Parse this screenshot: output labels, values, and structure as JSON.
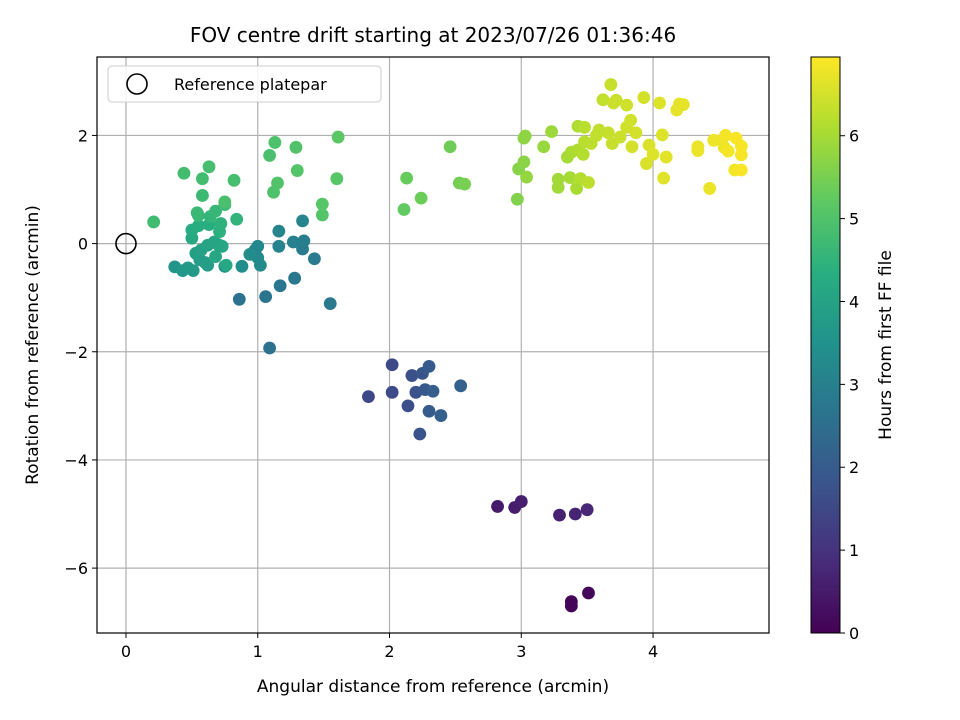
{
  "chart_data": {
    "type": "scatter",
    "title": "FOV centre drift starting at 2023/07/26 01:36:46",
    "xlabel": "Angular distance from reference (arcmin)",
    "ylabel": "Rotation from reference (arcmin)",
    "xlim": [
      -0.22,
      4.88
    ],
    "ylim": [
      -7.2,
      3.45
    ],
    "xticks": [
      0,
      1,
      2,
      3,
      4
    ],
    "yticks": [
      -6,
      -4,
      -2,
      0,
      2
    ],
    "xtick_labels": [
      "0",
      "1",
      "2",
      "3",
      "4"
    ],
    "ytick_labels": [
      "−6",
      "−4",
      "−2",
      "0",
      "2"
    ],
    "grid": true,
    "legend": {
      "placement": "top-left",
      "entries": [
        {
          "label": "Reference platepar",
          "marker": "open-circle",
          "x": 0,
          "y": 0
        }
      ]
    },
    "colorbar": {
      "label": "Hours from first FF file",
      "range": [
        0,
        6.95
      ],
      "ticks": [
        0,
        1,
        2,
        3,
        4,
        5,
        6
      ],
      "tick_labels": [
        "0",
        "1",
        "2",
        "3",
        "4",
        "5",
        "6"
      ],
      "colormap": "viridis"
    },
    "points": [
      [
        3.38,
        -6.62,
        0.05
      ],
      [
        3.38,
        -6.7,
        0.08
      ],
      [
        3.51,
        -6.46,
        0.12
      ],
      [
        2.82,
        -4.86,
        0.5
      ],
      [
        2.95,
        -4.88,
        0.55
      ],
      [
        3.0,
        -4.77,
        0.6
      ],
      [
        3.29,
        -5.02,
        0.65
      ],
      [
        3.41,
        -5.0,
        0.7
      ],
      [
        3.5,
        -4.92,
        0.75
      ],
      [
        1.84,
        -2.83,
        1.5
      ],
      [
        2.02,
        -2.24,
        1.55
      ],
      [
        2.02,
        -2.75,
        1.6
      ],
      [
        2.14,
        -3.0,
        1.65
      ],
      [
        2.17,
        -2.44,
        1.7
      ],
      [
        2.2,
        -2.75,
        1.75
      ],
      [
        2.23,
        -3.52,
        1.8
      ],
      [
        2.25,
        -2.4,
        1.85
      ],
      [
        2.27,
        -2.7,
        1.9
      ],
      [
        2.3,
        -2.27,
        1.95
      ],
      [
        2.3,
        -3.1,
        2.0
      ],
      [
        2.33,
        -2.73,
        2.05
      ],
      [
        2.39,
        -3.18,
        2.1
      ],
      [
        2.54,
        -2.63,
        2.15
      ],
      [
        0.86,
        -1.03,
        2.6
      ],
      [
        1.09,
        -1.93,
        2.6
      ],
      [
        1.06,
        -0.98,
        2.65
      ],
      [
        1.17,
        -0.78,
        2.7
      ],
      [
        1.28,
        -0.64,
        2.75
      ],
      [
        1.55,
        -1.11,
        2.8
      ],
      [
        1.43,
        -0.28,
        2.85
      ],
      [
        1.34,
        -0.1,
        2.9
      ],
      [
        1.35,
        0.05,
        2.95
      ],
      [
        1.27,
        0.03,
        3.0
      ],
      [
        1.16,
        -0.05,
        3.05
      ],
      [
        1.16,
        0.23,
        3.1
      ],
      [
        1.34,
        0.42,
        3.1
      ],
      [
        0.98,
        -0.12,
        3.15
      ],
      [
        1.0,
        -0.05,
        3.2
      ],
      [
        1.0,
        -0.26,
        3.25
      ],
      [
        1.02,
        -0.4,
        3.3
      ],
      [
        0.94,
        -0.2,
        3.35
      ],
      [
        0.88,
        -0.42,
        3.4
      ],
      [
        0.75,
        -0.42,
        3.45
      ],
      [
        0.37,
        -0.43,
        3.6
      ],
      [
        0.43,
        -0.5,
        3.65
      ],
      [
        0.47,
        -0.45,
        3.7
      ],
      [
        0.51,
        -0.5,
        3.75
      ],
      [
        0.56,
        -0.3,
        3.8
      ],
      [
        0.6,
        -0.35,
        3.85
      ],
      [
        0.62,
        -0.4,
        3.85
      ],
      [
        0.53,
        -0.18,
        3.9
      ],
      [
        0.57,
        -0.12,
        3.95
      ],
      [
        0.62,
        -0.03,
        4.0
      ],
      [
        0.67,
        0.03,
        4.05
      ],
      [
        0.7,
        -0.02,
        4.05
      ],
      [
        0.73,
        -0.05,
        4.1
      ],
      [
        0.68,
        -0.24,
        4.1
      ],
      [
        0.76,
        -0.4,
        4.15
      ],
      [
        0.5,
        0.1,
        4.2
      ],
      [
        0.5,
        0.25,
        4.25
      ],
      [
        0.55,
        0.33,
        4.3
      ],
      [
        0.63,
        0.35,
        4.35
      ],
      [
        0.71,
        0.22,
        4.4
      ],
      [
        0.72,
        0.37,
        4.45
      ],
      [
        0.84,
        0.45,
        4.5
      ],
      [
        0.64,
        0.5,
        4.55
      ],
      [
        0.68,
        0.6,
        4.6
      ],
      [
        0.55,
        0.52,
        4.6
      ],
      [
        0.54,
        0.57,
        4.65
      ],
      [
        0.75,
        0.72,
        4.7
      ],
      [
        0.58,
        0.89,
        4.7
      ],
      [
        0.21,
        0.4,
        4.75
      ],
      [
        0.44,
        1.3,
        4.8
      ],
      [
        0.58,
        1.2,
        4.8
      ],
      [
        0.63,
        1.42,
        4.85
      ],
      [
        0.82,
        1.17,
        4.85
      ],
      [
        0.75,
        0.77,
        4.9
      ],
      [
        1.09,
        1.63,
        4.9
      ],
      [
        1.13,
        1.87,
        4.95
      ],
      [
        1.12,
        0.95,
        4.95
      ],
      [
        1.15,
        1.12,
        5.0
      ],
      [
        1.29,
        1.78,
        5.0
      ],
      [
        1.3,
        1.35,
        5.05
      ],
      [
        1.49,
        0.53,
        5.05
      ],
      [
        1.49,
        0.73,
        5.1
      ],
      [
        1.6,
        1.2,
        5.1
      ],
      [
        1.61,
        1.97,
        5.15
      ],
      [
        2.11,
        0.63,
        5.25
      ],
      [
        2.13,
        1.21,
        5.3
      ],
      [
        2.24,
        0.84,
        5.35
      ],
      [
        2.46,
        1.79,
        5.4
      ],
      [
        2.53,
        1.12,
        5.45
      ],
      [
        2.57,
        1.1,
        5.5
      ],
      [
        2.97,
        0.82,
        5.6
      ],
      [
        2.98,
        1.38,
        5.65
      ],
      [
        3.02,
        1.51,
        5.7
      ],
      [
        3.02,
        1.95,
        5.75
      ],
      [
        3.03,
        1.99,
        5.75
      ],
      [
        3.04,
        1.23,
        5.8
      ],
      [
        3.17,
        1.79,
        5.85
      ],
      [
        3.23,
        2.07,
        5.9
      ],
      [
        3.28,
        1.04,
        5.95
      ],
      [
        3.28,
        1.19,
        5.95
      ],
      [
        3.35,
        1.6,
        6.0
      ],
      [
        3.37,
        1.22,
        6.0
      ],
      [
        3.38,
        1.69,
        6.05
      ],
      [
        3.42,
        1.02,
        6.05
      ],
      [
        3.43,
        1.73,
        6.1
      ],
      [
        3.43,
        2.17,
        6.1
      ],
      [
        3.45,
        1.2,
        6.15
      ],
      [
        3.47,
        1.65,
        6.15
      ],
      [
        3.48,
        2.15,
        6.2
      ],
      [
        3.48,
        1.88,
        6.2
      ],
      [
        3.51,
        1.13,
        6.25
      ],
      [
        3.53,
        1.85,
        6.25
      ],
      [
        3.57,
        2.0,
        6.3
      ],
      [
        3.59,
        2.1,
        6.3
      ],
      [
        3.62,
        2.66,
        6.3
      ],
      [
        3.66,
        2.05,
        6.35
      ],
      [
        3.68,
        2.94,
        6.35
      ],
      [
        3.69,
        1.85,
        6.35
      ],
      [
        3.7,
        2.6,
        6.4
      ],
      [
        3.72,
        2.65,
        6.4
      ],
      [
        3.75,
        1.97,
        6.4
      ],
      [
        3.8,
        2.56,
        6.45
      ],
      [
        3.8,
        2.15,
        6.45
      ],
      [
        3.83,
        2.28,
        6.45
      ],
      [
        3.84,
        1.79,
        6.5
      ],
      [
        3.87,
        2.05,
        6.5
      ],
      [
        3.93,
        2.7,
        6.5
      ],
      [
        3.95,
        1.48,
        6.55
      ],
      [
        3.97,
        1.82,
        6.55
      ],
      [
        4.0,
        1.65,
        6.6
      ],
      [
        4.05,
        2.6,
        6.6
      ],
      [
        4.07,
        2.01,
        6.6
      ],
      [
        4.08,
        1.21,
        6.65
      ],
      [
        4.1,
        1.6,
        6.65
      ],
      [
        4.18,
        2.47,
        6.7
      ],
      [
        4.2,
        2.58,
        6.7
      ],
      [
        4.23,
        2.57,
        6.7
      ],
      [
        4.34,
        1.72,
        6.75
      ],
      [
        4.34,
        1.79,
        6.75
      ],
      [
        4.43,
        1.02,
        6.75
      ],
      [
        4.46,
        1.91,
        6.8
      ],
      [
        4.52,
        1.91,
        6.8
      ],
      [
        4.54,
        1.78,
        6.8
      ],
      [
        4.55,
        2.0,
        6.85
      ],
      [
        4.57,
        1.71,
        6.85
      ],
      [
        4.62,
        1.36,
        6.85
      ],
      [
        4.63,
        1.95,
        6.9
      ],
      [
        4.67,
        1.64,
        6.9
      ],
      [
        4.67,
        1.8,
        6.9
      ],
      [
        4.67,
        1.36,
        6.9
      ]
    ]
  }
}
